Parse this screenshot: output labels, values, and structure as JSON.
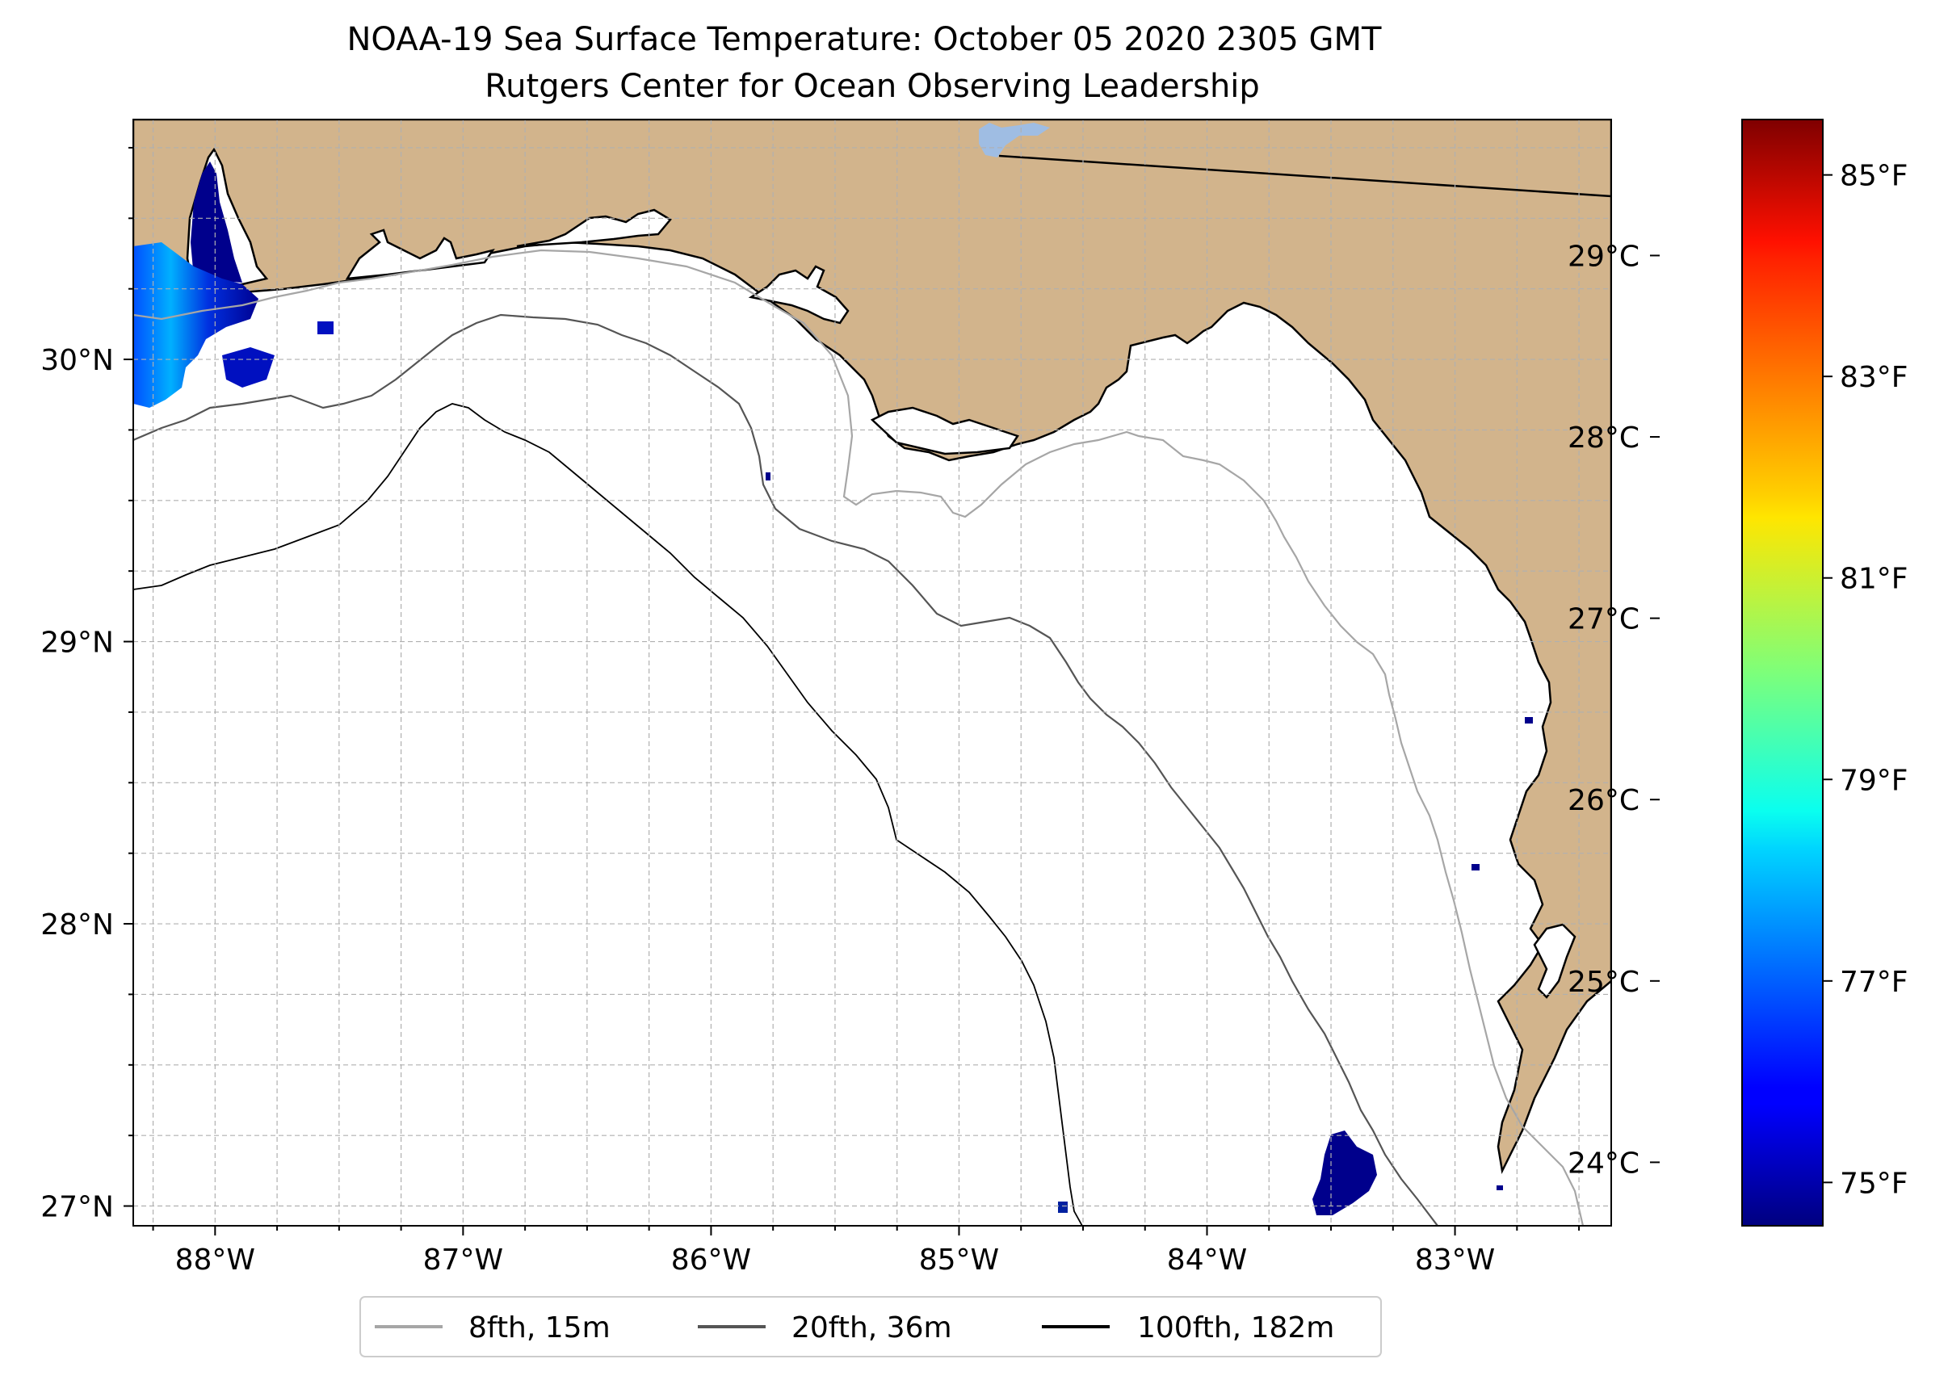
{
  "title": "NOAA-19 Sea Surface Temperature: October 05 2020 2305 GMT",
  "subtitle": "Rutgers Center for Ocean Observing Leadership",
  "map": {
    "extent": {
      "lon_min": -88.33,
      "lon_max": -82.37,
      "lat_min": 26.93,
      "lat_max": 30.85
    },
    "lon_ticks": [
      {
        "value": -88,
        "label": "88°W"
      },
      {
        "value": -87,
        "label": "87°W"
      },
      {
        "value": -86,
        "label": "86°W"
      },
      {
        "value": -85,
        "label": "85°W"
      },
      {
        "value": -84,
        "label": "84°W"
      },
      {
        "value": -83,
        "label": "83°W"
      }
    ],
    "lat_ticks": [
      {
        "value": 27,
        "label": "27°N"
      },
      {
        "value": 28,
        "label": "28°N"
      },
      {
        "value": 29,
        "label": "29°N"
      },
      {
        "value": 30,
        "label": "30°N"
      }
    ],
    "gridlines": true,
    "land_color": "#d2b48c",
    "lake_color": "#9fbde3",
    "ocean_color": "#ffffff"
  },
  "colorbar": {
    "colormap": "jet",
    "celsius_range": [
      23.65,
      29.75
    ],
    "celsius_ticks": [
      {
        "value": 24,
        "label": "24°C"
      },
      {
        "value": 25,
        "label": "25°C"
      },
      {
        "value": 26,
        "label": "26°C"
      },
      {
        "value": 27,
        "label": "27°C"
      },
      {
        "value": 28,
        "label": "28°C"
      },
      {
        "value": 29,
        "label": "29°C"
      }
    ],
    "fahrenheit_ticks": [
      {
        "value": 75,
        "label": "75°F"
      },
      {
        "value": 77,
        "label": "77°F"
      },
      {
        "value": 79,
        "label": "79°F"
      },
      {
        "value": 81,
        "label": "81°F"
      },
      {
        "value": 83,
        "label": "83°F"
      },
      {
        "value": 85,
        "label": "85°F"
      }
    ]
  },
  "legend": [
    {
      "label": "8fth, 15m",
      "color": "#a6a6a6"
    },
    {
      "label": "20fth, 36m",
      "color": "#555555"
    },
    {
      "label": "100fth, 182m",
      "color": "#000000"
    }
  ]
}
